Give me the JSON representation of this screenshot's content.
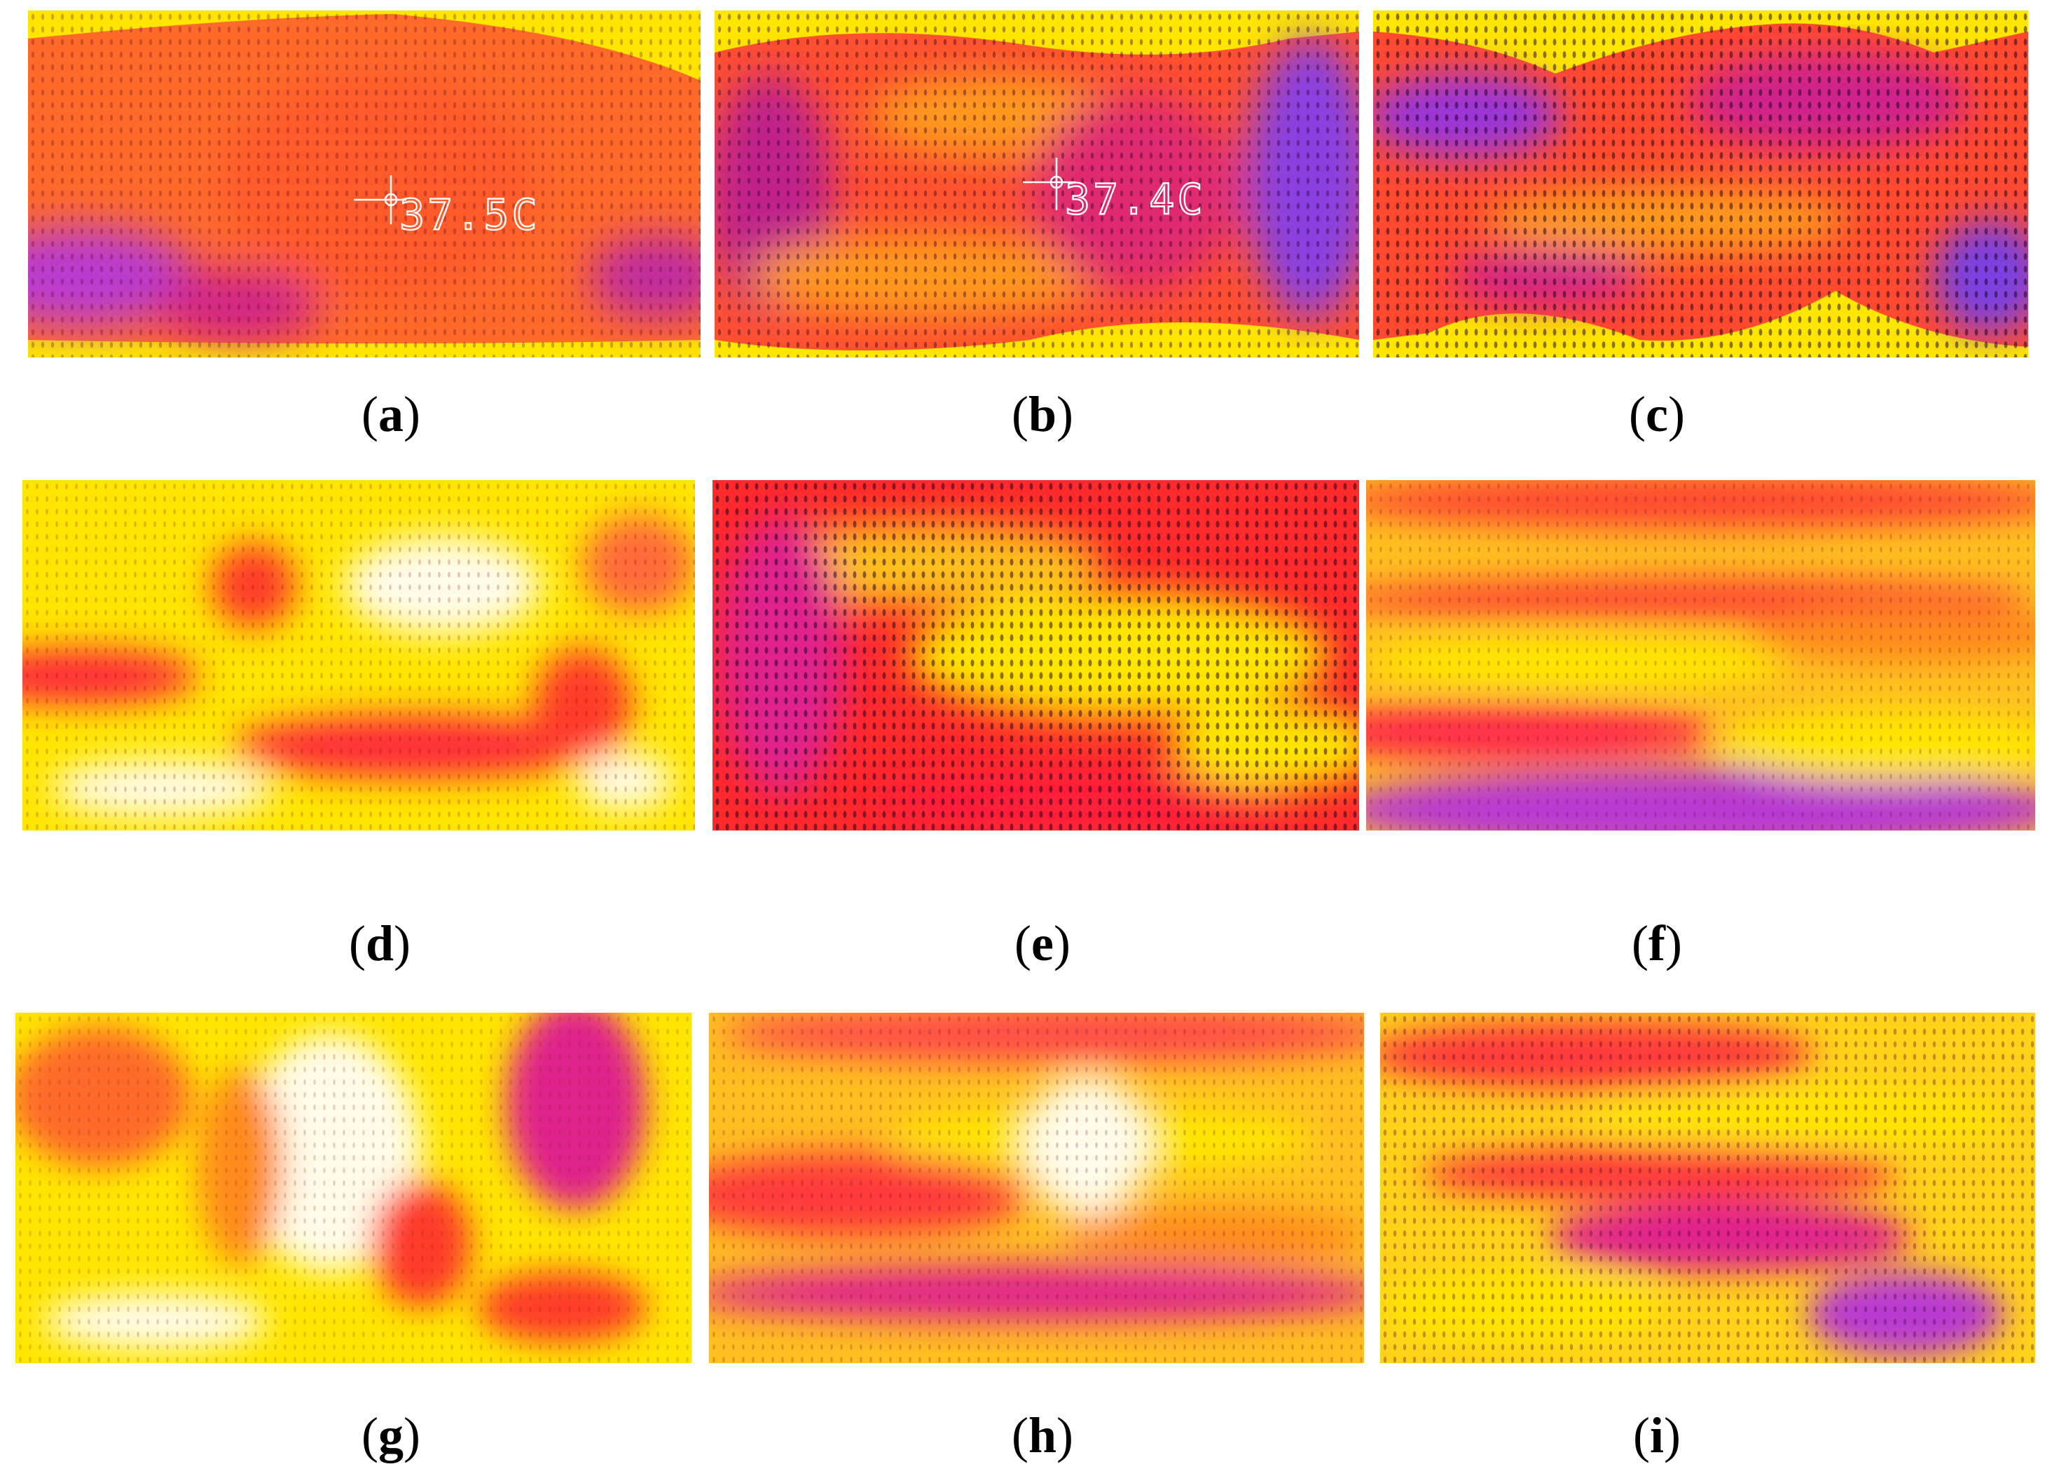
{
  "figure": {
    "panels": [
      {
        "id": "a",
        "caption": "a",
        "readout": "37.5C"
      },
      {
        "id": "b",
        "caption": "b",
        "readout": "37.4C"
      },
      {
        "id": "c",
        "caption": "c"
      },
      {
        "id": "d",
        "caption": "d"
      },
      {
        "id": "e",
        "caption": "e"
      },
      {
        "id": "f",
        "caption": "f"
      },
      {
        "id": "g",
        "caption": "g"
      },
      {
        "id": "h",
        "caption": "h"
      },
      {
        "id": "i",
        "caption": "i"
      }
    ],
    "colors": {
      "white": "#fffbe8",
      "yellow": "#ffe600",
      "orange": "#ff8a1e",
      "red": "#ff2a2a",
      "magenta": "#e0208c",
      "violet": "#9a36d8"
    }
  }
}
